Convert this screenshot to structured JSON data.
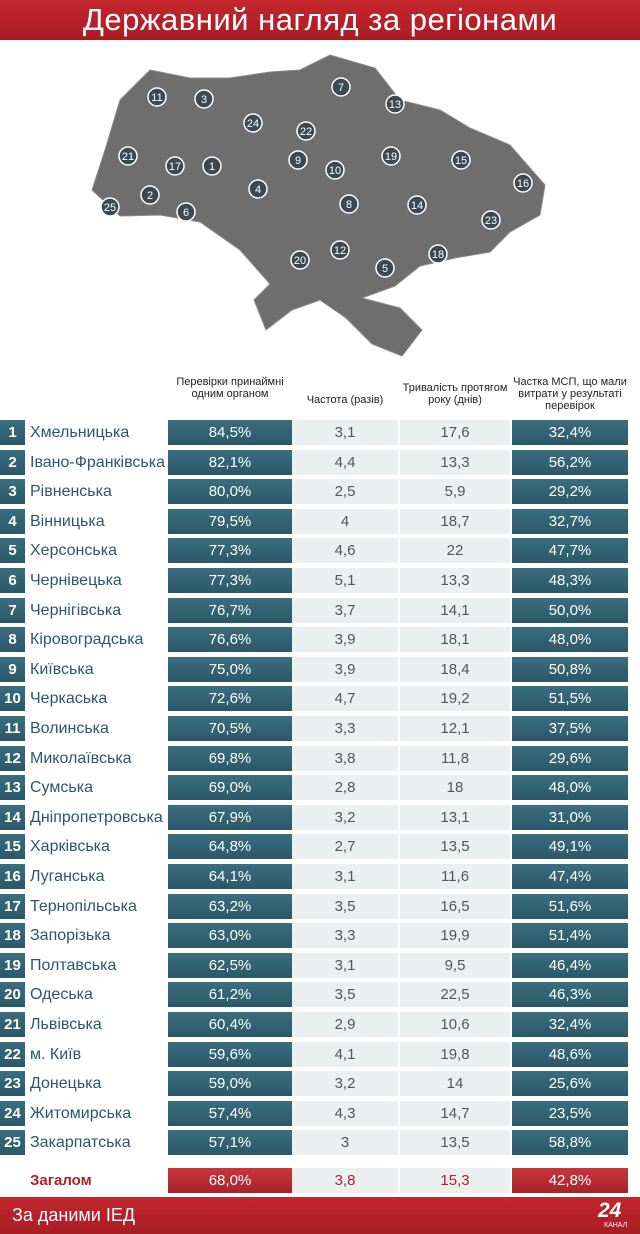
{
  "header": {
    "title": "Державний нагляд за регіонами"
  },
  "map": {
    "markers": [
      "11",
      "3",
      "24",
      "7",
      "13",
      "22",
      "21",
      "17",
      "1",
      "9",
      "10",
      "19",
      "15",
      "16",
      "2",
      "25",
      "6",
      "4",
      "8",
      "14",
      "23",
      "12",
      "20",
      "5",
      "18"
    ]
  },
  "table": {
    "columns": [
      "Перевірки принаймні одним органом",
      "Частота (разів)",
      "Тривалість протягом року (днів)",
      "Частка МСП, що мали витрати у результаті перевірок"
    ],
    "rows": [
      [
        "1",
        "Хмельницька",
        "84,5%",
        "3,1",
        "17,6",
        "32,4%"
      ],
      [
        "2",
        "Івано-Франківська",
        "82,1%",
        "4,4",
        "13,3",
        "56,2%"
      ],
      [
        "3",
        "Рівненська",
        "80,0%",
        "2,5",
        "5,9",
        "29,2%"
      ],
      [
        "4",
        "Вінницька",
        "79,5%",
        "4",
        "18,7",
        "32,7%"
      ],
      [
        "5",
        "Херсонська",
        "77,3%",
        "4,6",
        "22",
        "47,7%"
      ],
      [
        "6",
        "Чернівецька",
        "77,3%",
        "5,1",
        "13,3",
        "48,3%"
      ],
      [
        "7",
        "Чернігівська",
        "76,7%",
        "3,7",
        "14,1",
        "50,0%"
      ],
      [
        "8",
        "Кіровоградська",
        "76,6%",
        "3,9",
        "18,1",
        "48,0%"
      ],
      [
        "9",
        "Київська",
        "75,0%",
        "3,9",
        "18,4",
        "50,8%"
      ],
      [
        "10",
        "Черкаська",
        "72,6%",
        "4,7",
        "19,2",
        "51,5%"
      ],
      [
        "11",
        "Волинська",
        "70,5%",
        "3,3",
        "12,1",
        "37,5%"
      ],
      [
        "12",
        "Миколаївська",
        "69,8%",
        "3,8",
        "11,8",
        "29,6%"
      ],
      [
        "13",
        "Сумська",
        "69,0%",
        "2,8",
        "18",
        "48,0%"
      ],
      [
        "14",
        "Дніпропетровська",
        "67,9%",
        "3,2",
        "13,1",
        "31,0%"
      ],
      [
        "15",
        "Харківська",
        "64,8%",
        "2,7",
        "13,5",
        "49,1%"
      ],
      [
        "16",
        "Луганська",
        "64,1%",
        "3,1",
        "11,6",
        "47,4%"
      ],
      [
        "17",
        "Тернопільська",
        "63,2%",
        "3,5",
        "16,5",
        "51,6%"
      ],
      [
        "18",
        "Запорізька",
        "63,0%",
        "3,3",
        "19,9",
        "51,4%"
      ],
      [
        "19",
        "Полтавська",
        "62,5%",
        "3,1",
        "9,5",
        "46,4%"
      ],
      [
        "20",
        "Одеська",
        "61,2%",
        "3,5",
        "22,5",
        "46,3%"
      ],
      [
        "21",
        "Львівська",
        "60,4%",
        "2,9",
        "10,6",
        "32,4%"
      ],
      [
        "22",
        "м. Київ",
        "59,6%",
        "4,1",
        "19,8",
        "48,6%"
      ],
      [
        "23",
        "Донецька",
        "59,0%",
        "3,2",
        "14",
        "25,6%"
      ],
      [
        "24",
        "Житомирська",
        "57,4%",
        "4,3",
        "14,7",
        "23,5%"
      ],
      [
        "25",
        "Закарпатська",
        "57,1%",
        "3",
        "13,5",
        "58,8%"
      ]
    ],
    "total": [
      "Загалом",
      "68,0%",
      "3,8",
      "15,3",
      "42,8%"
    ]
  },
  "footer": {
    "source": "За даними ІЕД",
    "logo": "24",
    "logo_caption": "КАНАЛ"
  }
}
